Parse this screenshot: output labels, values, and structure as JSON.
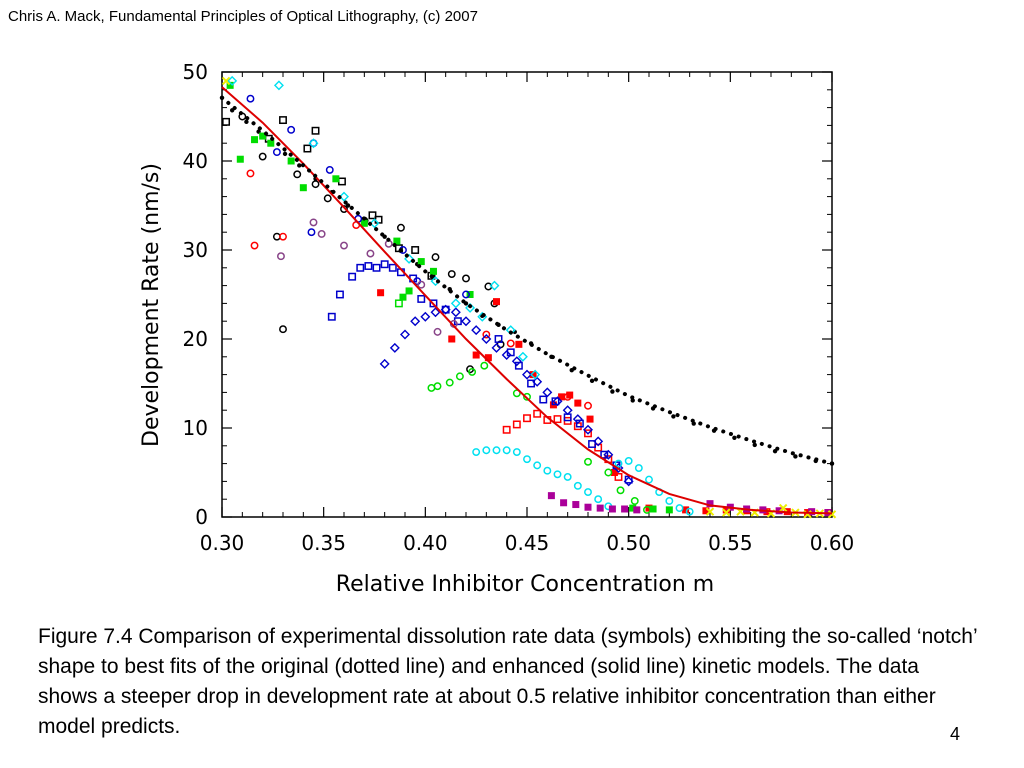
{
  "header": "Chris A. Mack, Fundamental Principles of Optical Lithography, (c) 2007",
  "caption": "Figure 7.4  Comparison of experimental dissolution rate data (symbols) exhibiting the so-called ‘notch’ shape to best fits of the original (dotted line) and enhanced (solid line) kinetic models.  The data shows a steeper drop in development rate at about 0.5 relative inhibitor concentration than either model predicts.",
  "page_number": "4",
  "chart_data": {
    "type": "scatter",
    "xlabel": "Relative Inhibitor Concentration m",
    "ylabel": "Development Rate (nm/s)",
    "xlim": [
      0.3,
      0.6
    ],
    "ylim": [
      0,
      50
    ],
    "xticks": [
      "0.30",
      "0.35",
      "0.40",
      "0.45",
      "0.50",
      "0.55",
      "0.60"
    ],
    "yticks": [
      "0",
      "10",
      "20",
      "30",
      "40",
      "50"
    ],
    "colors": {
      "black": "#000000",
      "red": "#ff0000",
      "green": "#00dd00",
      "blue": "#0000cc",
      "cyan": "#00e0f0",
      "magenta": "#aa0099",
      "purple": "#884488",
      "yellow": "#eeee00",
      "solid_line": "#dd0000",
      "dotted_line": "#000000"
    },
    "lines": [
      {
        "style": "solid",
        "color": "solid_line",
        "x": [
          0.3,
          0.32,
          0.34,
          0.36,
          0.38,
          0.4,
          0.42,
          0.44,
          0.46,
          0.48,
          0.5,
          0.52,
          0.54,
          0.56,
          0.58,
          0.6
        ],
        "y": [
          48.3,
          44.3,
          39.7,
          34.8,
          29.8,
          24.9,
          20.0,
          15.5,
          11.2,
          7.6,
          4.7,
          2.6,
          1.3,
          0.8,
          0.5,
          0.4
        ]
      },
      {
        "style": "dotted",
        "color": "dotted_line",
        "x": [
          0.3,
          0.32,
          0.34,
          0.36,
          0.38,
          0.4,
          0.42,
          0.44,
          0.46,
          0.48,
          0.5,
          0.52,
          0.54,
          0.56,
          0.58,
          0.6
        ],
        "y": [
          47.1,
          43.4,
          39.5,
          35.5,
          31.5,
          27.6,
          24.0,
          21.0,
          18.3,
          15.9,
          13.6,
          11.8,
          10.1,
          8.6,
          7.2,
          6.0
        ]
      }
    ],
    "series": [
      {
        "color": "black",
        "marker": "open-square",
        "x": [
          0.302,
          0.323,
          0.33,
          0.342,
          0.346,
          0.359,
          0.374,
          0.377,
          0.387,
          0.395,
          0.403
        ],
        "y": [
          44.4,
          42.5,
          44.6,
          41.4,
          43.4,
          37.7,
          33.9,
          33.4,
          30.2,
          30.0,
          27.1
        ]
      },
      {
        "color": "black",
        "marker": "open-circle",
        "x": [
          0.31,
          0.32,
          0.327,
          0.33,
          0.337,
          0.346,
          0.352,
          0.36,
          0.37,
          0.388,
          0.405,
          0.413,
          0.42,
          0.431,
          0.434,
          0.437,
          0.422
        ],
        "y": [
          45.0,
          40.5,
          31.5,
          21.1,
          38.5,
          37.4,
          35.8,
          34.6,
          33.3,
          32.5,
          29.2,
          27.3,
          26.8,
          25.9,
          24.0,
          19.4,
          16.6
        ]
      },
      {
        "color": "black",
        "marker": "filled-dot",
        "x": [
          0.3,
          0.305,
          0.312,
          0.318,
          0.324,
          0.331,
          0.338,
          0.346,
          0.354,
          0.362,
          0.371,
          0.38,
          0.388,
          0.396,
          0.404,
          0.412,
          0.42,
          0.428,
          0.436,
          0.444,
          0.452,
          0.462,
          0.472,
          0.482,
          0.492,
          0.502,
          0.512,
          0.522,
          0.532,
          0.542,
          0.552,
          0.562,
          0.572,
          0.582,
          0.592,
          0.6
        ],
        "y": [
          47.1,
          45.7,
          44.4,
          43.3,
          42.1,
          40.8,
          39.5,
          38.0,
          36.5,
          35.0,
          33.3,
          31.5,
          29.9,
          28.4,
          27.0,
          25.6,
          24.0,
          22.6,
          21.6,
          20.8,
          19.5,
          18.0,
          16.5,
          15.3,
          14.1,
          13.1,
          12.2,
          11.3,
          10.5,
          9.7,
          8.9,
          8.1,
          7.4,
          6.8,
          6.3,
          6.0
        ]
      },
      {
        "color": "red",
        "marker": "open-circle",
        "x": [
          0.314,
          0.316,
          0.33,
          0.366,
          0.43,
          0.442,
          0.47,
          0.48
        ],
        "y": [
          38.6,
          30.5,
          31.5,
          32.8,
          20.5,
          19.5,
          13.5,
          12.5
        ]
      },
      {
        "color": "red",
        "marker": "filled-square",
        "x": [
          0.378,
          0.413,
          0.425,
          0.431,
          0.435,
          0.446,
          0.453,
          0.463,
          0.467,
          0.471,
          0.475,
          0.481,
          0.493,
          0.51,
          0.528,
          0.538,
          0.548,
          0.558,
          0.568,
          0.578,
          0.588,
          0.598
        ],
        "y": [
          25.2,
          20.0,
          18.2,
          17.9,
          24.2,
          19.4,
          16.0,
          12.6,
          13.5,
          13.7,
          12.8,
          11.0,
          5.0,
          1.0,
          0.8,
          0.7,
          0.8,
          0.7,
          0.6,
          0.6,
          0.5,
          0.5
        ]
      },
      {
        "color": "red",
        "marker": "open-square",
        "x": [
          0.44,
          0.445,
          0.45,
          0.455,
          0.46,
          0.465,
          0.47,
          0.475,
          0.48,
          0.485,
          0.49,
          0.495
        ],
        "y": [
          9.8,
          10.4,
          11.1,
          11.6,
          10.9,
          11.0,
          10.8,
          10.2,
          9.4,
          7.8,
          6.5,
          4.5
        ]
      },
      {
        "color": "green",
        "marker": "filled-square",
        "x": [
          0.304,
          0.309,
          0.316,
          0.32,
          0.324,
          0.334,
          0.34,
          0.356,
          0.37,
          0.386,
          0.389,
          0.392,
          0.398,
          0.404,
          0.422,
          0.502,
          0.512,
          0.52
        ],
        "y": [
          48.5,
          40.2,
          42.4,
          42.8,
          42.0,
          40.0,
          37.0,
          38.0,
          33.0,
          31.0,
          24.7,
          25.4,
          28.7,
          27.6,
          25.0,
          1.0,
          0.9,
          0.8
        ]
      },
      {
        "color": "green",
        "marker": "open-circle",
        "x": [
          0.403,
          0.406,
          0.412,
          0.417,
          0.423,
          0.429,
          0.445,
          0.45,
          0.48,
          0.49,
          0.496,
          0.503,
          0.509
        ],
        "y": [
          14.5,
          14.7,
          15.1,
          15.8,
          16.3,
          17.0,
          13.9,
          13.5,
          6.2,
          5.0,
          3.0,
          1.8,
          0.8
        ]
      },
      {
        "color": "green",
        "marker": "open-square",
        "x": [
          0.387
        ],
        "y": [
          24.0
        ]
      },
      {
        "color": "blue",
        "marker": "open-circle",
        "x": [
          0.314,
          0.327,
          0.334,
          0.344,
          0.345,
          0.353,
          0.367,
          0.389,
          0.396,
          0.42
        ],
        "y": [
          47.0,
          41.0,
          43.5,
          32.0,
          42.0,
          39.0,
          33.5,
          30.0,
          26.5,
          25.0
        ]
      },
      {
        "color": "blue",
        "marker": "open-square",
        "x": [
          0.354,
          0.358,
          0.364,
          0.368,
          0.372,
          0.376,
          0.38,
          0.384,
          0.388,
          0.394,
          0.398,
          0.404,
          0.41,
          0.416,
          0.436,
          0.442,
          0.446,
          0.452,
          0.458,
          0.464,
          0.47,
          0.476,
          0.482,
          0.488,
          0.494,
          0.5
        ],
        "y": [
          22.5,
          25.0,
          27.0,
          28.0,
          28.2,
          28.0,
          28.4,
          28.0,
          27.5,
          26.8,
          24.5,
          24.0,
          23.3,
          22.0,
          20.0,
          18.5,
          17.0,
          15.0,
          13.2,
          13.0,
          11.2,
          10.5,
          8.2,
          7.0,
          5.8,
          4.2
        ]
      },
      {
        "color": "blue",
        "marker": "open-diamond",
        "x": [
          0.38,
          0.385,
          0.39,
          0.395,
          0.4,
          0.405,
          0.41,
          0.415,
          0.42,
          0.425,
          0.43,
          0.435,
          0.44,
          0.445,
          0.45,
          0.455,
          0.46,
          0.465,
          0.47,
          0.475,
          0.48,
          0.485,
          0.49,
          0.495,
          0.5
        ],
        "y": [
          17.2,
          19.0,
          20.5,
          22.0,
          22.5,
          23.0,
          23.3,
          23.0,
          22.0,
          21.0,
          20.0,
          19.0,
          18.2,
          17.5,
          16.0,
          15.2,
          14.0,
          13.0,
          12.0,
          11.0,
          9.8,
          8.5,
          7.0,
          5.5,
          4.0
        ]
      },
      {
        "color": "cyan",
        "marker": "open-diamond",
        "x": [
          0.305,
          0.328,
          0.345,
          0.36,
          0.375,
          0.392,
          0.405,
          0.415,
          0.422,
          0.428,
          0.434,
          0.442,
          0.448,
          0.454
        ],
        "y": [
          49.0,
          48.5,
          42.0,
          36.0,
          33.0,
          29.0,
          26.5,
          24.0,
          23.5,
          22.5,
          26.0,
          21.0,
          18.0,
          16.0
        ]
      },
      {
        "color": "cyan",
        "marker": "open-circle",
        "x": [
          0.425,
          0.43,
          0.435,
          0.44,
          0.445,
          0.45,
          0.455,
          0.46,
          0.465,
          0.47,
          0.475,
          0.48,
          0.485,
          0.49,
          0.495,
          0.5,
          0.505,
          0.51,
          0.515,
          0.52,
          0.525,
          0.53
        ],
        "y": [
          7.3,
          7.5,
          7.5,
          7.5,
          7.3,
          6.5,
          5.8,
          5.2,
          4.8,
          4.5,
          3.5,
          2.8,
          2.0,
          1.2,
          6.0,
          6.3,
          5.5,
          4.2,
          2.8,
          1.8,
          1.0,
          0.6
        ]
      },
      {
        "color": "magenta",
        "marker": "filled-square",
        "x": [
          0.462,
          0.468,
          0.474,
          0.48,
          0.486,
          0.492,
          0.498,
          0.504,
          0.54,
          0.55,
          0.558,
          0.566,
          0.574,
          0.59,
          0.598
        ],
        "y": [
          2.4,
          1.6,
          1.4,
          1.1,
          1.0,
          0.9,
          0.9,
          0.8,
          1.5,
          1.1,
          0.9,
          0.8,
          0.7,
          0.6,
          0.5
        ]
      },
      {
        "color": "purple",
        "marker": "open-circle",
        "x": [
          0.329,
          0.345,
          0.349,
          0.36,
          0.373,
          0.382,
          0.398,
          0.406,
          0.414
        ],
        "y": [
          29.3,
          33.1,
          31.8,
          30.5,
          29.6,
          30.7,
          26.1,
          20.8,
          21.7
        ]
      },
      {
        "color": "yellow",
        "marker": "x",
        "x": [
          0.302,
          0.54,
          0.548,
          0.555,
          0.562,
          0.57,
          0.576,
          0.582,
          0.588,
          0.594,
          0.6
        ],
        "y": [
          49.0,
          0.6,
          0.5,
          0.6,
          0.5,
          0.4,
          1.0,
          0.5,
          0.3,
          0.4,
          0.3
        ]
      }
    ]
  }
}
